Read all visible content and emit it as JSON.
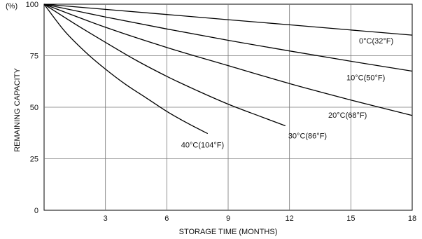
{
  "chart_data": {
    "type": "line",
    "title": "",
    "xlabel": "STORAGE TIME (MONTHS)",
    "ylabel": "REMAINING CAPACITY",
    "yunit": "(%)",
    "xlim": [
      0,
      18
    ],
    "ylim": [
      0,
      100
    ],
    "xticks": [
      3,
      6,
      9,
      12,
      15,
      18
    ],
    "yticks": [
      0,
      25,
      50,
      75,
      100
    ],
    "grid": true,
    "legend": "none",
    "line_color": "#000000",
    "series": [
      {
        "name": "0°C(32°F)",
        "x": [
          0,
          3,
          6,
          9,
          12,
          15,
          18
        ],
        "y": [
          100,
          97.5,
          95,
          92.5,
          90,
          87.5,
          85
        ]
      },
      {
        "name": "10°C(50°F)",
        "x": [
          0,
          3,
          6,
          9,
          12,
          15,
          18
        ],
        "y": [
          100,
          93.8,
          88,
          82.5,
          77.3,
          72.3,
          67.5
        ]
      },
      {
        "name": "20°C(68°F)",
        "x": [
          0,
          3,
          6,
          9,
          12,
          15,
          18
        ],
        "y": [
          100,
          88.8,
          79,
          70.2,
          61.5,
          53.5,
          46
        ]
      },
      {
        "name": "30°C(86°F)",
        "x": [
          0,
          1.5,
          3,
          4.5,
          6,
          7.5,
          9,
          10.5,
          11.8
        ],
        "y": [
          100,
          90.5,
          81.5,
          72.8,
          65,
          58,
          51.5,
          45.8,
          41
        ]
      },
      {
        "name": "40°C(104°F)",
        "x": [
          0,
          1,
          2,
          3,
          4,
          5,
          6,
          7,
          8
        ],
        "y": [
          100,
          87,
          77,
          68.5,
          61,
          54.5,
          48,
          42.3,
          37.2
        ]
      }
    ]
  }
}
